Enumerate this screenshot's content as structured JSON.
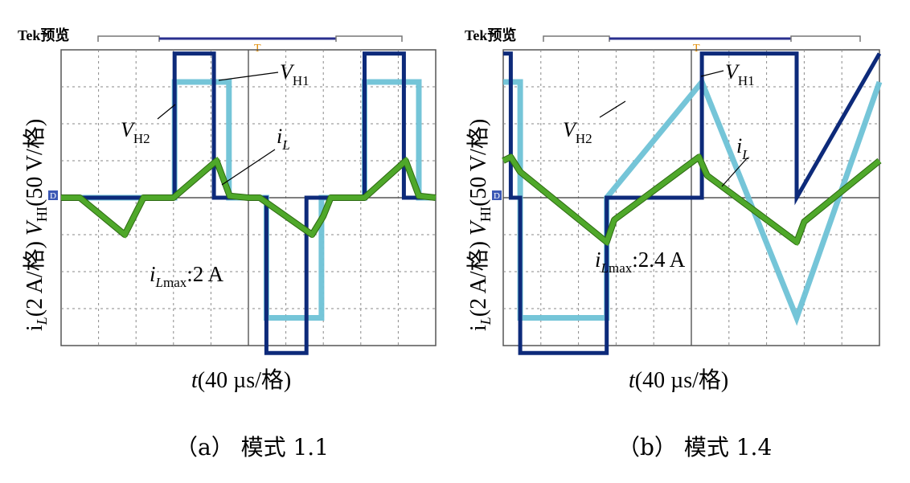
{
  "colors": {
    "vh1": "#0d2a7a",
    "vh2": "#6ec2d6",
    "il_fill": "#4fa82a",
    "il_edge": "#2d6a12",
    "grid": "#8a8a8a",
    "ground_marker": "#3b58b5",
    "trigger_marker": "#e08a00"
  },
  "panels": [
    {
      "header": "Tek预览",
      "trigger_marker": "T",
      "ground_marker": "D",
      "y_label": {
        "p1": "i",
        "p2": "",
        "p3": "L",
        "p4": "(2 A/格)  ",
        "p5": "V",
        "p6": "HI",
        "p7": "(50 V/格)"
      },
      "x_label": {
        "p1": "t",
        "p2": "(40 µs/格)"
      },
      "annotations": {
        "vh1": {
          "main": "V",
          "sub": "H1"
        },
        "vh2": {
          "main": "V",
          "sub": "H2"
        },
        "il": {
          "main": "i",
          "sub": "L"
        },
        "ilmax": {
          "main": "i",
          "sub_italic": "L",
          "sub": "max",
          "value": ":2 A"
        }
      },
      "caption": "（a） 模式 1.1"
    },
    {
      "header": "Tek预览",
      "trigger_marker": "T",
      "ground_marker": "D",
      "y_label": {
        "p1": "i",
        "p2": "",
        "p3": "L",
        "p4": "(2 A/格)  ",
        "p5": "V",
        "p6": "HI",
        "p7": "(50 V/格)"
      },
      "x_label": {
        "p1": "t",
        "p2": "(40 µs/格)"
      },
      "annotations": {
        "vh1": {
          "main": "V",
          "sub": "H1"
        },
        "vh2": {
          "main": "V",
          "sub": "H2"
        },
        "il": {
          "main": "i",
          "sub": "L"
        },
        "ilmax": {
          "main": "i",
          "sub_italic": "L",
          "sub": "max",
          "value": ":2.4 A"
        }
      },
      "caption": "（b） 模式 1.4"
    }
  ],
  "chart_data": [
    {
      "type": "line",
      "panel": "a",
      "title": "",
      "xlabel": "t(40 µs/格)",
      "ylabel": "iL(2 A/格)  VHI(50 V/格)",
      "xlim": [
        0,
        10
      ],
      "ylim": [
        -4,
        4
      ],
      "grid": true,
      "series": [
        {
          "name": "VH1",
          "unit": "div",
          "x": [
            0.0,
            0.0,
            3.03,
            3.03,
            4.08,
            4.08,
            5.48,
            5.48,
            6.55,
            6.55,
            8.1,
            8.1,
            9.15,
            9.15,
            10.0
          ],
          "y": [
            0.0,
            0.0,
            0.0,
            3.9,
            3.9,
            0.0,
            0.0,
            -4.2,
            -4.2,
            0.0,
            0.0,
            3.9,
            3.9,
            0.0,
            0.0
          ]
        },
        {
          "name": "VH2",
          "unit": "div",
          "x": [
            0.0,
            0.0,
            3.03,
            3.03,
            4.48,
            4.48,
            5.48,
            5.48,
            6.95,
            6.95,
            8.1,
            8.1,
            9.55,
            9.55,
            10.0
          ],
          "y": [
            0.0,
            0.0,
            0.0,
            3.13,
            3.13,
            0.0,
            0.0,
            -3.25,
            -3.25,
            0.0,
            0.0,
            3.13,
            3.13,
            0.0,
            0.0
          ]
        },
        {
          "name": "iL",
          "unit": "div",
          "x": [
            0.0,
            0.5,
            1.7,
            1.9,
            2.2,
            3.0,
            4.15,
            4.5,
            5.0,
            5.3,
            6.7,
            7.0,
            7.2,
            8.1,
            9.2,
            9.55,
            10.0
          ],
          "y": [
            0.0,
            0.0,
            -1.0,
            -0.6,
            0.0,
            0.0,
            1.0,
            0.05,
            0.0,
            0.0,
            -1.0,
            -0.5,
            0.0,
            0.0,
            1.0,
            0.05,
            0.0
          ]
        }
      ],
      "annotations": [
        "VH1",
        "VH2",
        "iL",
        "iLmax:2 A"
      ]
    },
    {
      "type": "line",
      "panel": "b",
      "title": "",
      "xlabel": "t(40 µs/格)",
      "ylabel": "iL(2 A/格)  VHI(50 V/格)",
      "xlim": [
        0,
        10
      ],
      "ylim": [
        -4,
        4
      ],
      "grid": true,
      "series": [
        {
          "name": "VH1",
          "unit": "div",
          "x": [
            0.0,
            0.0,
            0.2,
            0.2,
            0.45,
            0.45,
            2.75,
            2.75,
            5.28,
            5.28,
            7.8,
            7.8,
            10.0
          ],
          "y": [
            3.9,
            3.9,
            3.9,
            0.0,
            0.0,
            -4.2,
            -4.2,
            0.0,
            0.0,
            3.9,
            3.9,
            0.0,
            3.9
          ]
        },
        {
          "name": "VH2",
          "unit": "div",
          "x": [
            0.0,
            0.0,
            0.45,
            0.45,
            2.75,
            2.75,
            5.28,
            5.28,
            7.8,
            7.8,
            10.0
          ],
          "y": [
            3.13,
            3.13,
            3.13,
            -3.25,
            -3.25,
            0.0,
            3.13,
            3.13,
            -3.25,
            -3.25,
            3.13
          ]
        },
        {
          "name": "iL",
          "unit": "div",
          "x": [
            0.0,
            0.2,
            0.45,
            2.75,
            2.95,
            5.2,
            5.42,
            7.8,
            8.0,
            10.0
          ],
          "y": [
            1.0,
            1.1,
            0.7,
            -1.2,
            -0.6,
            1.1,
            0.6,
            -1.2,
            -0.65,
            1.0
          ]
        }
      ],
      "annotations": [
        "VH1",
        "VH2",
        "iL",
        "iLmax:2.4 A"
      ]
    }
  ]
}
